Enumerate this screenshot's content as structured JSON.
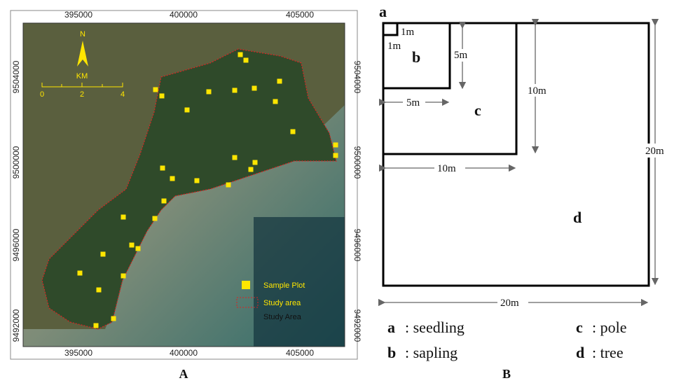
{
  "panel_a": {
    "x_ticks": [
      "395000",
      "400000",
      "405000"
    ],
    "y_ticks": [
      "9504000",
      "9500000",
      "9496000",
      "9492000"
    ],
    "north": "N",
    "scale_unit": "KM",
    "scale_ticks": [
      "0",
      "2",
      "4"
    ],
    "legend": [
      "Sample Plot",
      "Study area",
      "Study Area"
    ],
    "caption": "A"
  },
  "panel_b": {
    "corner": "a",
    "dims": [
      "1m",
      "1m",
      "5m",
      "5m",
      "10m",
      "10m",
      "20m",
      "20m"
    ],
    "plots": [
      "b",
      "c",
      "d"
    ],
    "legend": [
      {
        "key": "a",
        "text": ": seedling"
      },
      {
        "key": "b",
        "text": ": sapling"
      },
      {
        "key": "c",
        "text": ":  pole"
      },
      {
        "key": "d",
        "text": ": tree"
      }
    ],
    "caption": "B"
  }
}
